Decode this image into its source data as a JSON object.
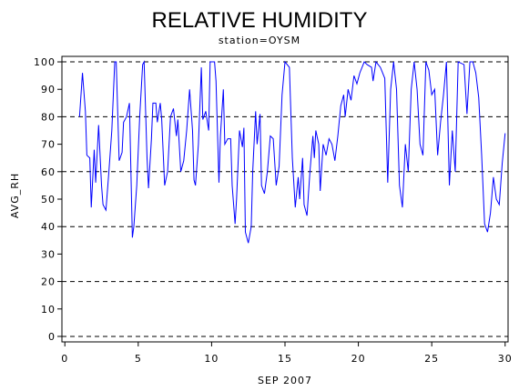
{
  "chart_data": {
    "type": "line",
    "title": "RELATIVE HUMIDITY",
    "subtitle": "station=OYSM",
    "xlabel": "SEP 2007",
    "ylabel": "AVG_RH",
    "xlim": [
      -0.2,
      30.2
    ],
    "ylim": [
      -2,
      102
    ],
    "xticks": [
      0,
      5,
      10,
      15,
      20,
      25,
      30
    ],
    "yticks": [
      0,
      10,
      20,
      30,
      40,
      50,
      60,
      70,
      80,
      90,
      100
    ],
    "ygrid": [
      0,
      20,
      40,
      60,
      80,
      100
    ],
    "color": "#0000ff",
    "x": [
      1.0,
      1.2,
      1.4,
      1.5,
      1.7,
      1.8,
      2.0,
      2.1,
      2.3,
      2.5,
      2.6,
      2.8,
      3.0,
      3.2,
      3.4,
      3.5,
      3.7,
      3.9,
      4.0,
      4.2,
      4.4,
      4.6,
      4.7,
      4.9,
      5.1,
      5.3,
      5.4,
      5.6,
      5.7,
      5.9,
      6.0,
      6.2,
      6.3,
      6.5,
      6.6,
      6.8,
      7.0,
      7.2,
      7.4,
      7.6,
      7.7,
      7.9,
      8.1,
      8.3,
      8.5,
      8.7,
      8.8,
      8.9,
      9.1,
      9.3,
      9.4,
      9.6,
      9.8,
      9.9,
      10.2,
      10.3,
      10.5,
      10.6,
      10.8,
      10.9,
      11.1,
      11.3,
      11.4,
      11.6,
      11.7,
      11.9,
      12.1,
      12.2,
      12.3,
      12.5,
      12.7,
      12.8,
      13.0,
      13.1,
      13.3,
      13.4,
      13.6,
      13.8,
      14.0,
      14.2,
      14.4,
      14.6,
      14.8,
      15.0,
      15.3,
      15.5,
      15.7,
      15.9,
      16.0,
      16.2,
      16.3,
      16.5,
      16.7,
      16.9,
      17.0,
      17.1,
      17.3,
      17.4,
      17.6,
      17.8,
      18.0,
      18.2,
      18.4,
      18.6,
      18.8,
      19.0,
      19.1,
      19.3,
      19.5,
      19.7,
      19.9,
      20.1,
      20.4,
      20.6,
      20.9,
      21.0,
      21.2,
      21.5,
      21.8,
      22.0,
      22.2,
      22.4,
      22.6,
      22.8,
      23.0,
      23.2,
      23.4,
      23.6,
      23.8,
      24.0,
      24.2,
      24.4,
      24.6,
      24.8,
      25.0,
      25.2,
      25.4,
      25.6,
      25.8,
      26.0,
      26.2,
      26.4,
      26.6,
      26.8,
      27.2,
      27.4,
      27.6,
      27.8,
      28.0,
      28.2,
      28.4,
      28.6,
      28.8,
      29.0,
      29.2,
      29.4,
      29.6,
      29.8,
      30.0
    ],
    "values": [
      80,
      96,
      82,
      66,
      65,
      47,
      68,
      56,
      77,
      55,
      48,
      46,
      60,
      75,
      100,
      100,
      64,
      67,
      78,
      80,
      85,
      36,
      40,
      55,
      80,
      99,
      100,
      65,
      54,
      72,
      85,
      85,
      78,
      85,
      79,
      55,
      60,
      80,
      83,
      73,
      79,
      60,
      64,
      75,
      90,
      75,
      57,
      55,
      70,
      98,
      79,
      82,
      75,
      100,
      100,
      93,
      56,
      73,
      90,
      70,
      72,
      72,
      55,
      41,
      50,
      75,
      69,
      76,
      38,
      34,
      40,
      60,
      82,
      70,
      81,
      55,
      52,
      60,
      73,
      72,
      55,
      62,
      88,
      100,
      98,
      65,
      47,
      58,
      50,
      65,
      48,
      44,
      60,
      73,
      65,
      75,
      70,
      53,
      70,
      66,
      72,
      70,
      64,
      73,
      84,
      88,
      80,
      90,
      86,
      95,
      92,
      96,
      100,
      99,
      98,
      93,
      100,
      98,
      94,
      56,
      90,
      100,
      90,
      55,
      47,
      70,
      60,
      90,
      100,
      90,
      70,
      66,
      100,
      97,
      88,
      90,
      66,
      78,
      88,
      100,
      55,
      75,
      60,
      100,
      99,
      81,
      100,
      100,
      96,
      87,
      66,
      41,
      38,
      45,
      58,
      50,
      48,
      63,
      74
    ]
  }
}
